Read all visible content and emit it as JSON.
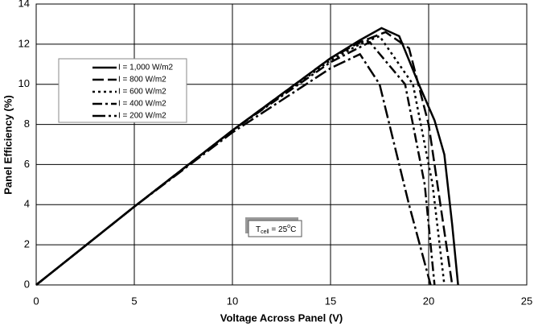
{
  "chart_data": {
    "type": "line",
    "x_label": "Voltage Across Panel (V)",
    "y_label": "Panel Efficiency (%)",
    "xlim": [
      0,
      25
    ],
    "xticks": [
      0,
      5,
      10,
      15,
      20,
      25
    ],
    "ylim": [
      0,
      14
    ],
    "yticks": [
      0,
      2,
      4,
      6,
      8,
      10,
      12,
      14
    ],
    "grid": true,
    "annotation": {
      "base": "T",
      "sub": "cell",
      "mid": " = 25",
      "sup": "o",
      "end": "C"
    },
    "series": [
      {
        "name": "I = 1,000 W/m2",
        "color": "#000000",
        "dash": "none",
        "x": [
          0,
          5,
          10,
          15,
          16.5,
          17.6,
          18.5,
          19.5,
          20.3,
          20.8,
          21.2,
          21.5
        ],
        "values": [
          0,
          3.9,
          7.7,
          11.3,
          12.2,
          12.8,
          12.4,
          10,
          8.2,
          6.5,
          3,
          0
        ]
      },
      {
        "name": "I =  800 W/m2",
        "color": "#000000",
        "dash": "14,5",
        "x": [
          0,
          5,
          10,
          15,
          16.5,
          17.8,
          19,
          20,
          20.6,
          21.2
        ],
        "values": [
          0,
          3.9,
          7.7,
          11.3,
          12.1,
          12.6,
          11.8,
          8,
          4,
          0
        ]
      },
      {
        "name": "I =  600 W/m2",
        "color": "#000000",
        "dash": "3,4",
        "x": [
          0,
          5,
          10,
          15,
          16.5,
          17.5,
          19.2,
          20.2,
          20.8
        ],
        "values": [
          0,
          3.9,
          7.7,
          11.2,
          12,
          12.4,
          10,
          5,
          0
        ]
      },
      {
        "name": "I =  400 W/m2",
        "color": "#000000",
        "dash": "12,4,3,4",
        "x": [
          0,
          5,
          10,
          15,
          17,
          18.8,
          19.8,
          20.3
        ],
        "values": [
          0,
          3.9,
          7.7,
          11.1,
          12.1,
          10,
          5,
          0
        ]
      },
      {
        "name": "I =  200 W/m2",
        "color": "#000000",
        "dash": "16,4,3,4",
        "x": [
          0,
          5,
          10,
          15,
          16.5,
          17.5,
          19,
          20.1
        ],
        "values": [
          0,
          3.9,
          7.6,
          10.8,
          11.5,
          10,
          4,
          0
        ]
      }
    ]
  }
}
